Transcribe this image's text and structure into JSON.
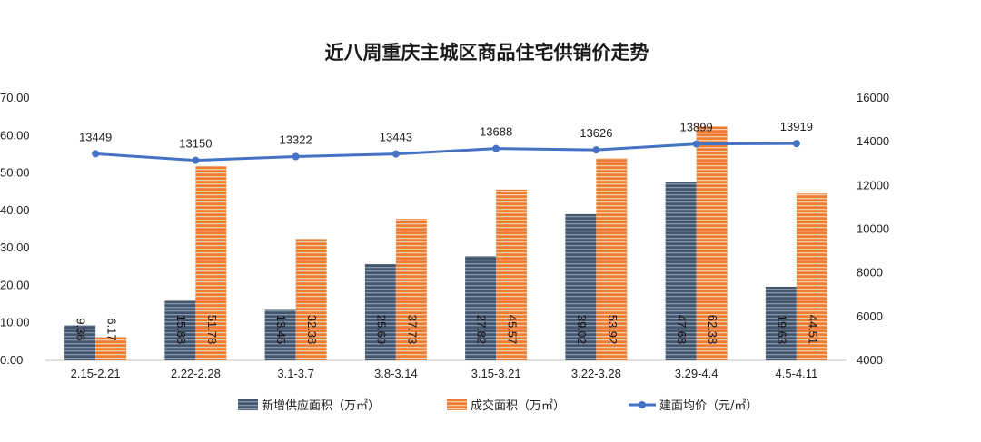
{
  "chart_data": {
    "type": "bar",
    "title": "近八周重庆主城区商品住宅供销价走势",
    "categories": [
      "2.15-2.21",
      "2.22-2.28",
      "3.1-3.7",
      "3.8-3.14",
      "3.15-3.21",
      "3.22-3.28",
      "3.29-4.4",
      "4.5-4.11"
    ],
    "series": [
      {
        "name": "新增供应面积（万㎡）",
        "kind": "bar",
        "axis": "left",
        "color": "#44546A",
        "values": [
          9.36,
          15.88,
          13.45,
          25.69,
          27.82,
          39.02,
          47.68,
          19.63
        ],
        "labels": [
          "9.36",
          "15.88",
          "13.45",
          "25.69",
          "27.82",
          "39.02",
          "47.68",
          "19.63"
        ]
      },
      {
        "name": "成交面积（万㎡）",
        "kind": "bar",
        "axis": "left",
        "color": "#ED7D31",
        "values": [
          6.17,
          51.78,
          32.38,
          37.73,
          45.57,
          53.92,
          62.38,
          44.51
        ],
        "labels": [
          "6.17",
          "51.78",
          "32.38",
          "37.73",
          "45.57",
          "53.92",
          "62.38",
          "44.51"
        ]
      },
      {
        "name": "建面均价（元/㎡）",
        "kind": "line",
        "axis": "right",
        "color": "#4472C4",
        "values": [
          13449,
          13150,
          13322,
          13443,
          13688,
          13626,
          13899,
          13919
        ],
        "labels": [
          "13449",
          "13150",
          "13322",
          "13443",
          "13688",
          "13626",
          "13899",
          "13919"
        ]
      }
    ],
    "y_left": {
      "min": 0,
      "max": 70,
      "ticks": [
        "0.00",
        "10.00",
        "20.00",
        "30.00",
        "40.00",
        "50.00",
        "60.00",
        "70.00"
      ]
    },
    "y_right": {
      "min": 4000,
      "max": 16000,
      "ticks": [
        "4000",
        "6000",
        "8000",
        "10000",
        "12000",
        "14000",
        "16000"
      ]
    },
    "grid": false,
    "legend_position": "bottom"
  }
}
